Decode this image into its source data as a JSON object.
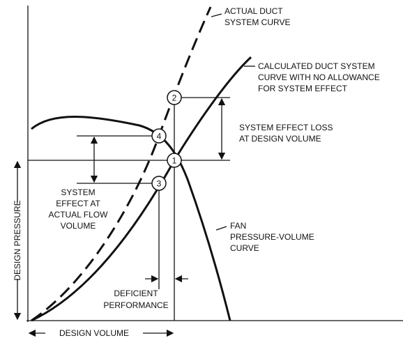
{
  "labels": {
    "actual_duct": [
      "ACTUAL DUCT",
      "SYSTEM CURVE"
    ],
    "calculated_duct": [
      "CALCULATED DUCT SYSTEM",
      "CURVE WITH NO ALLOWANCE",
      "FOR SYSTEM EFFECT"
    ],
    "system_effect_loss": [
      "SYSTEM EFFECT LOSS",
      "AT DESIGN VOLUME"
    ],
    "system_effect_actual": [
      "SYSTEM",
      "EFFECT AT",
      "ACTUAL FLOW",
      "VOLUME"
    ],
    "fan_curve": [
      "FAN",
      "PRESSURE-VOLUME",
      "CURVE"
    ],
    "deficient": [
      "DEFICIENT",
      "PERFORMANCE"
    ],
    "design_pressure": "DESIGN PRESSURE",
    "design_volume": "DESIGN VOLUME"
  },
  "points": [
    "1",
    "2",
    "3",
    "4"
  ]
}
